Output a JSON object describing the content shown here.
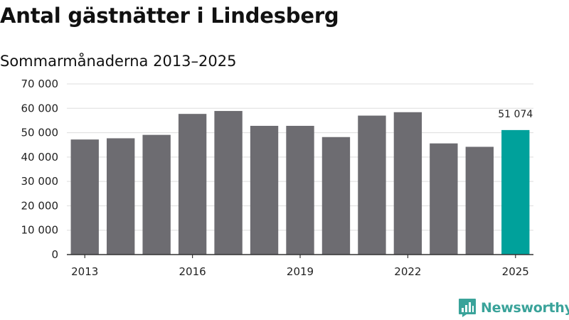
{
  "title": "Antal gästnätter i Lindesberg",
  "subtitle": "Sommarmånaderna 2013–2025",
  "brand": {
    "name": "Newsworthy",
    "color": "#3aa39a",
    "icon": "newsworthy-logo-icon"
  },
  "colors": {
    "bar": "#6d6c71",
    "highlight": "#00a19b",
    "grid": "#dddddd",
    "axis": "#333333"
  },
  "chart_data": {
    "type": "bar",
    "title": "Antal gästnätter i Lindesberg",
    "subtitle": "Sommarmånaderna 2013–2025",
    "categories": [
      "2013",
      "2014",
      "2015",
      "2016",
      "2017",
      "2018",
      "2019",
      "2020",
      "2021",
      "2022",
      "2023",
      "2024",
      "2025"
    ],
    "values": [
      47200,
      47700,
      49100,
      57700,
      58900,
      52800,
      52800,
      48200,
      57000,
      58400,
      45600,
      44200,
      51074
    ],
    "highlight_index": 12,
    "data_labels": [
      {
        "index": 12,
        "text": "51 074"
      }
    ],
    "ylim": [
      0,
      70000
    ],
    "yticks": [
      0,
      10000,
      20000,
      30000,
      40000,
      50000,
      60000,
      70000
    ],
    "ytick_labels": [
      "0",
      "10 000",
      "20 000",
      "30 000",
      "40 000",
      "50 000",
      "60 000",
      "70 000"
    ],
    "xtick_labels": [
      "2013",
      "2016",
      "2019",
      "2022",
      "2025"
    ],
    "grid": true,
    "legend": false
  }
}
